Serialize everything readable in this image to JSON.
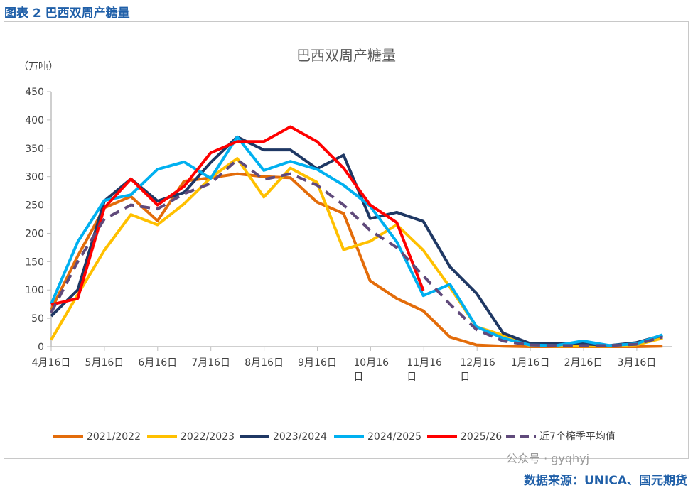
{
  "header": {
    "title": "图表 2  巴西双周产糖量"
  },
  "watermark": "公众号 · gyqhyj",
  "source": "数据来源：UNICA、国元期货",
  "chart_data": {
    "type": "line",
    "title": "巴西双周产糖量",
    "ylabel": "（万吨）",
    "ylim": [
      0,
      450
    ],
    "yticks": [
      0,
      50,
      100,
      150,
      200,
      250,
      300,
      350,
      400,
      450
    ],
    "xtick_labels": [
      "4月16日",
      "5月16日",
      "6月16日",
      "7月16日",
      "8月16日",
      "9月16日",
      "10月16\n日",
      "11月16\n日",
      "12月16\n日",
      "1月16日",
      "2月16日",
      "3月16日"
    ],
    "grid": false,
    "legend": "bottom",
    "series": [
      {
        "name": "2021/2022",
        "color": "#E36C0A",
        "dashed": false,
        "values": [
          65,
          160,
          245,
          265,
          222,
          292,
          298,
          305,
          300,
          298,
          255,
          235,
          116,
          85,
          63,
          17,
          3,
          1,
          0,
          0,
          0,
          0,
          0,
          1
        ]
      },
      {
        "name": "2022/2023",
        "color": "#FFC000",
        "dashed": false,
        "values": [
          12,
          92,
          170,
          233,
          215,
          252,
          298,
          332,
          264,
          315,
          290,
          171,
          186,
          215,
          170,
          105,
          35,
          20,
          2,
          1,
          1,
          1,
          3,
          15
        ]
      },
      {
        "name": "2023/2024",
        "color": "#1F3864",
        "dashed": false,
        "values": [
          54,
          100,
          257,
          296,
          257,
          272,
          325,
          370,
          347,
          347,
          314,
          338,
          226,
          237,
          221,
          141,
          94,
          24,
          6,
          6,
          5,
          2,
          7,
          20
        ]
      },
      {
        "name": "2024/2025",
        "color": "#00B0F0",
        "dashed": false,
        "values": [
          75,
          185,
          258,
          268,
          313,
          326,
          297,
          370,
          311,
          327,
          313,
          285,
          248,
          185,
          90,
          110,
          35,
          15,
          3,
          2,
          10,
          2,
          5,
          21
        ]
      },
      {
        "name": "2025/26",
        "color": "#FF0000",
        "dashed": false,
        "values": [
          74,
          85,
          245,
          296,
          250,
          283,
          342,
          362,
          362,
          388,
          362,
          315,
          250,
          219,
          99
        ]
      },
      {
        "name": "近7个榨季平均值",
        "color": "#604A7B",
        "dashed": true,
        "values": [
          60,
          150,
          225,
          250,
          243,
          270,
          288,
          330,
          295,
          305,
          285,
          250,
          205,
          175,
          125,
          75,
          30,
          10,
          3,
          2,
          2,
          2,
          4,
          17
        ]
      }
    ]
  }
}
